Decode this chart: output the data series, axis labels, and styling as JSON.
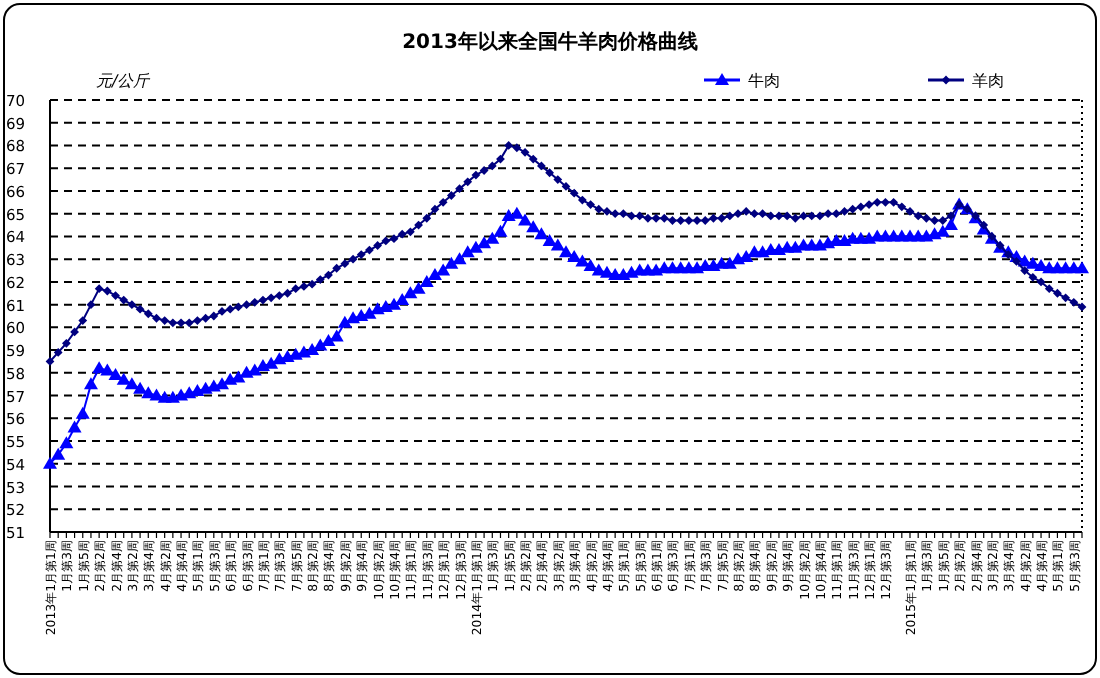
{
  "chart_data": {
    "type": "line",
    "title": "2013年以来全国牛羊肉价格曲线",
    "ylabel": "元/公斤",
    "categories": [
      "2013年1月第1周",
      null,
      "1月第3周",
      null,
      "1月第5周",
      null,
      "2月第2周",
      null,
      "2月第4周",
      null,
      "3月第2周",
      null,
      "3月第4周",
      null,
      "4月第2周",
      null,
      "4月第4周",
      null,
      "5月第1周",
      null,
      "5月第3周",
      null,
      "6月第1周",
      null,
      "6月第3周",
      null,
      "7月第1周",
      null,
      "7月第3周",
      null,
      "7月第5周",
      null,
      "8月第2周",
      null,
      "8月第4周",
      null,
      "9月第2周",
      null,
      "9月第4周",
      null,
      "10月第2周",
      null,
      "10月第4周",
      null,
      "11月第1周",
      null,
      "11月第3周",
      null,
      "12月第1周",
      null,
      "12月第3周",
      null,
      "2014年1月第1周",
      null,
      "1月第3周",
      null,
      "1月第5周",
      null,
      "2月第2周",
      null,
      "2月第4周",
      null,
      "3月第2周",
      null,
      "3月第4周",
      null,
      "4月第2周",
      null,
      "4月第4周",
      null,
      "5月第1周",
      null,
      "5月第3周",
      null,
      "6月第1周",
      null,
      "6月第3周",
      null,
      "7月第1周",
      null,
      "7月第3周",
      null,
      "7月第5周",
      null,
      "8月第2周",
      null,
      "8月第4周",
      null,
      "9月第2周",
      null,
      "9月第4周",
      null,
      "10月第2周",
      null,
      "10月第4周",
      null,
      "11月第1周",
      null,
      "11月第3周",
      null,
      "12月第1周",
      null,
      "12月第3周",
      null,
      null,
      "2015年1月第1周",
      null,
      "1月第3周",
      null,
      "1月第5周",
      null,
      "2月第2周",
      null,
      "2月第4周",
      null,
      "3月第2周",
      null,
      "3月第4周",
      null,
      "4月第2周",
      null,
      "4月第4周",
      null,
      "5月第1周",
      null,
      "5月第3周",
      null
    ],
    "series": [
      {
        "name": "牛肉",
        "color": "#0000ff",
        "marker": "triangle",
        "values": [
          54.0,
          54.4,
          54.9,
          55.6,
          56.2,
          57.5,
          58.2,
          58.1,
          57.9,
          57.7,
          57.5,
          57.3,
          57.1,
          57.0,
          56.9,
          56.9,
          57.0,
          57.1,
          57.2,
          57.3,
          57.4,
          57.5,
          57.7,
          57.8,
          58.0,
          58.1,
          58.3,
          58.4,
          58.6,
          58.7,
          58.8,
          58.9,
          59.0,
          59.2,
          59.4,
          59.6,
          60.2,
          60.4,
          60.5,
          60.6,
          60.8,
          60.9,
          61.0,
          61.2,
          61.5,
          61.7,
          62.0,
          62.3,
          62.5,
          62.8,
          63.0,
          63.3,
          63.5,
          63.7,
          63.9,
          64.2,
          64.9,
          65.0,
          64.7,
          64.4,
          64.1,
          63.8,
          63.6,
          63.3,
          63.1,
          62.9,
          62.7,
          62.5,
          62.4,
          62.3,
          62.3,
          62.4,
          62.5,
          62.5,
          62.5,
          62.6,
          62.6,
          62.6,
          62.6,
          62.6,
          62.7,
          62.7,
          62.8,
          62.8,
          63.0,
          63.1,
          63.3,
          63.3,
          63.4,
          63.4,
          63.5,
          63.5,
          63.6,
          63.6,
          63.6,
          63.7,
          63.8,
          63.8,
          63.9,
          63.9,
          63.9,
          64.0,
          64.0,
          64.0,
          64.0,
          64.0,
          64.0,
          64.0,
          64.1,
          64.2,
          64.5,
          65.4,
          65.2,
          64.8,
          64.3,
          63.9,
          63.5,
          63.3,
          63.1,
          62.9,
          62.8,
          62.7,
          62.6,
          62.6,
          62.6,
          62.6,
          62.6
        ]
      },
      {
        "name": "羊肉",
        "color": "#000080",
        "marker": "diamond",
        "values": [
          58.5,
          58.9,
          59.3,
          59.8,
          60.3,
          61.0,
          61.7,
          61.6,
          61.4,
          61.2,
          61.0,
          60.8,
          60.6,
          60.4,
          60.3,
          60.2,
          60.2,
          60.2,
          60.3,
          60.4,
          60.5,
          60.7,
          60.8,
          60.9,
          61.0,
          61.1,
          61.2,
          61.3,
          61.4,
          61.5,
          61.7,
          61.8,
          61.9,
          62.1,
          62.3,
          62.6,
          62.8,
          63.0,
          63.2,
          63.4,
          63.6,
          63.8,
          63.9,
          64.1,
          64.2,
          64.5,
          64.8,
          65.2,
          65.5,
          65.8,
          66.1,
          66.4,
          66.7,
          66.9,
          67.1,
          67.4,
          68.0,
          67.9,
          67.7,
          67.4,
          67.1,
          66.8,
          66.5,
          66.2,
          65.9,
          65.6,
          65.4,
          65.2,
          65.1,
          65.0,
          65.0,
          64.9,
          64.9,
          64.8,
          64.8,
          64.8,
          64.7,
          64.7,
          64.7,
          64.7,
          64.7,
          64.8,
          64.8,
          64.9,
          65.0,
          65.1,
          65.0,
          65.0,
          64.9,
          64.9,
          64.9,
          64.8,
          64.9,
          64.9,
          64.9,
          65.0,
          65.0,
          65.1,
          65.2,
          65.3,
          65.4,
          65.5,
          65.5,
          65.5,
          65.3,
          65.1,
          64.9,
          64.8,
          64.7,
          64.7,
          64.9,
          65.4,
          65.2,
          64.9,
          64.5,
          64.0,
          63.6,
          63.2,
          62.9,
          62.5,
          62.2,
          62.0,
          61.7,
          61.5,
          61.3,
          61.1,
          60.9
        ]
      }
    ],
    "ylim": [
      51,
      70
    ],
    "yticks": [
      51,
      52,
      53,
      54,
      55,
      56,
      57,
      58,
      59,
      60,
      61,
      62,
      63,
      64,
      65,
      66,
      67,
      68,
      69,
      70
    ],
    "grid": "y",
    "legend": "top right",
    "line_style": "solid"
  }
}
